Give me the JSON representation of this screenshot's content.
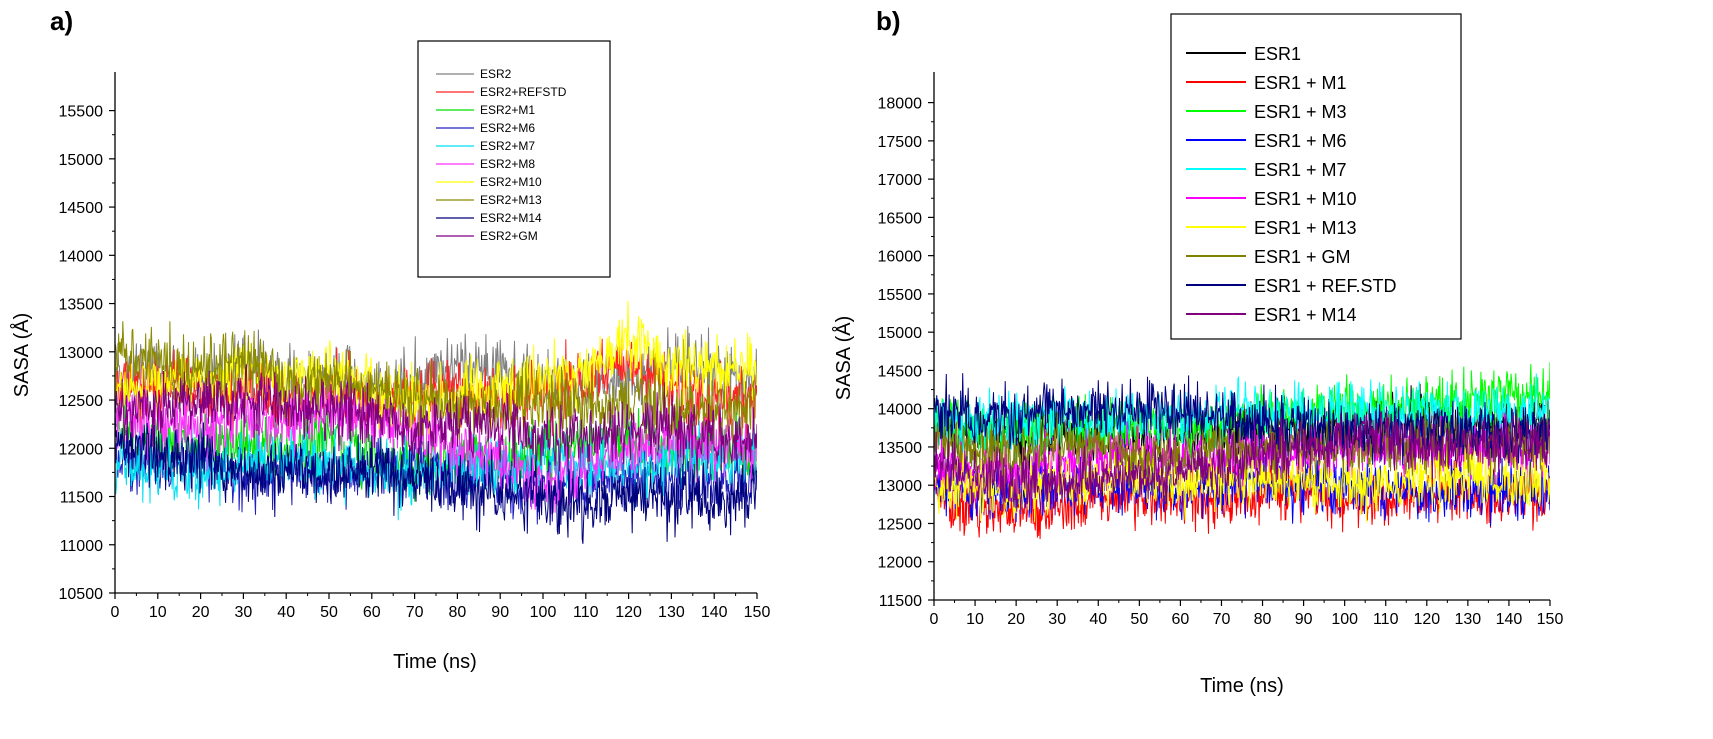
{
  "chart_data": [
    {
      "type": "line",
      "panel_label": "a)",
      "xlabel": "Time (ns)",
      "ylabel": "SASA (Å)",
      "xlim": [
        0,
        150
      ],
      "ylim": [
        10500,
        15900
      ],
      "x_ticks": [
        0,
        10,
        20,
        30,
        40,
        50,
        60,
        70,
        80,
        90,
        100,
        110,
        120,
        130,
        140,
        150
      ],
      "x_tick_labels": [
        "0",
        "10",
        "20",
        "30",
        "40",
        "50",
        "60",
        "70",
        "80",
        "90",
        "100",
        "110",
        "120",
        "130",
        "140",
        "150"
      ],
      "y_ticks": [
        10500,
        11000,
        11500,
        12000,
        12500,
        13000,
        13500,
        14000,
        14500,
        15000,
        15500
      ],
      "y_tick_labels": [
        "10500",
        "11000",
        "11500",
        "12000",
        "12500",
        "13000",
        "13500",
        "14000",
        "14500",
        "15000",
        "15500"
      ],
      "grid": false,
      "legend_position": "top-right",
      "x": [
        0,
        10,
        20,
        30,
        40,
        50,
        60,
        70,
        80,
        90,
        100,
        110,
        120,
        130,
        140,
        150
      ],
      "series": [
        {
          "name": "ESR2",
          "color": "#808080",
          "values": [
            12700,
            12800,
            12700,
            12800,
            12700,
            12800,
            12600,
            12700,
            12900,
            12800,
            12700,
            12600,
            12700,
            12900,
            12800,
            12700
          ]
        },
        {
          "name": "ESR2+REFSTD",
          "color": "#ff2020",
          "values": [
            12600,
            12700,
            12600,
            12600,
            12500,
            12600,
            12500,
            12500,
            12600,
            12500,
            12600,
            12700,
            12900,
            12600,
            12500,
            12500
          ]
        },
        {
          "name": "ESR2+M1",
          "color": "#00e000",
          "values": [
            12200,
            12100,
            12100,
            12000,
            12000,
            12100,
            11900,
            11800,
            11900,
            11900,
            12000,
            12000,
            12100,
            12000,
            12000,
            11900
          ]
        },
        {
          "name": "ESR2+M6",
          "color": "#2020c0",
          "values": [
            11900,
            11800,
            11900,
            11700,
            11800,
            11700,
            11800,
            11800,
            11700,
            11700,
            11600,
            11600,
            11700,
            11700,
            11600,
            11700
          ]
        },
        {
          "name": "ESR2+M7",
          "color": "#00e0f0",
          "values": [
            11900,
            11700,
            11800,
            11800,
            11900,
            11800,
            11800,
            11700,
            11800,
            11800,
            11900,
            11800,
            11800,
            11900,
            11900,
            11900
          ]
        },
        {
          "name": "ESR2+M8",
          "color": "#ff30ff",
          "values": [
            12300,
            12300,
            12200,
            12300,
            12300,
            12400,
            12300,
            12200,
            12000,
            11900,
            11600,
            11800,
            12000,
            12100,
            12000,
            12000
          ]
        },
        {
          "name": "ESR2+M10",
          "color": "#ffff00",
          "values": [
            12600,
            12700,
            12700,
            12800,
            12700,
            12800,
            12600,
            12500,
            12500,
            12600,
            12700,
            12800,
            13100,
            12900,
            12800,
            12800
          ]
        },
        {
          "name": "ESR2+M13",
          "color": "#8b8b00",
          "values": [
            13000,
            12900,
            12800,
            12900,
            12700,
            12700,
            12600,
            12500,
            12500,
            12400,
            12500,
            12400,
            12500,
            12400,
            12400,
            12400
          ]
        },
        {
          "name": "ESR2+M14",
          "color": "#00007a",
          "values": [
            12100,
            11900,
            11900,
            11700,
            11800,
            11700,
            11800,
            11700,
            11600,
            11500,
            11500,
            11400,
            11500,
            11500,
            11400,
            11600
          ]
        },
        {
          "name": "ESR2+GM",
          "color": "#800080",
          "values": [
            12400,
            12400,
            12500,
            12500,
            12400,
            12400,
            12300,
            12200,
            12300,
            12200,
            12100,
            12100,
            12200,
            12200,
            12100,
            12100
          ]
        }
      ]
    },
    {
      "type": "line",
      "panel_label": "b)",
      "xlabel": "Time (ns)",
      "ylabel": "SASA (Å)",
      "xlim": [
        0,
        150
      ],
      "ylim": [
        11500,
        18400
      ],
      "x_ticks": [
        0,
        10,
        20,
        30,
        40,
        50,
        60,
        70,
        80,
        90,
        100,
        110,
        120,
        130,
        140,
        150
      ],
      "x_tick_labels": [
        "0",
        "10",
        "20",
        "30",
        "40",
        "50",
        "60",
        "70",
        "80",
        "90",
        "100",
        "110",
        "120",
        "130",
        "140",
        "150"
      ],
      "y_ticks": [
        11500,
        12000,
        12500,
        13000,
        13500,
        14000,
        14500,
        15000,
        15500,
        16000,
        16500,
        17000,
        17500,
        18000
      ],
      "y_tick_labels": [
        "11500",
        "12000",
        "12500",
        "13000",
        "13500",
        "14000",
        "14500",
        "15000",
        "15500",
        "16000",
        "16500",
        "17000",
        "17500",
        "18000"
      ],
      "grid": false,
      "legend_position": "top-right",
      "x": [
        0,
        10,
        20,
        30,
        40,
        50,
        60,
        70,
        80,
        90,
        100,
        110,
        120,
        130,
        140,
        150
      ],
      "series": [
        {
          "name": "ESR1",
          "color": "#000000",
          "values": [
            13700,
            13700,
            13600,
            13700,
            13700,
            13600,
            13600,
            13700,
            13800,
            13700,
            13800,
            13800,
            13900,
            13800,
            13800,
            13900
          ]
        },
        {
          "name": "ESR1 + M1",
          "color": "#ff0000",
          "values": [
            12900,
            12700,
            12600,
            12700,
            12800,
            12900,
            12800,
            12800,
            12900,
            12900,
            12800,
            12800,
            12900,
            12900,
            12800,
            12900
          ]
        },
        {
          "name": "ESR1 + M3",
          "color": "#00ff00",
          "values": [
            13800,
            13800,
            13700,
            13800,
            13700,
            13800,
            13700,
            13800,
            13900,
            13900,
            14000,
            14000,
            14100,
            14100,
            14200,
            14200
          ]
        },
        {
          "name": "ESR1 + M6",
          "color": "#0000ff",
          "values": [
            13000,
            12900,
            12900,
            13000,
            13000,
            13000,
            12900,
            13000,
            13000,
            13000,
            12900,
            12900,
            12900,
            12900,
            12900,
            12900
          ]
        },
        {
          "name": "ESR1 + M7",
          "color": "#00ffff",
          "values": [
            13900,
            13800,
            13800,
            13900,
            13800,
            13900,
            13900,
            14000,
            13900,
            13900,
            14000,
            14000,
            14000,
            13900,
            14000,
            14000
          ]
        },
        {
          "name": "ESR1 + M10",
          "color": "#ff00ff",
          "values": [
            13300,
            13200,
            13200,
            13300,
            13300,
            13400,
            13300,
            13400,
            13400,
            13400,
            13500,
            13500,
            13500,
            13500,
            13500,
            13500
          ]
        },
        {
          "name": "ESR1 + M13",
          "color": "#ffff00",
          "values": [
            13000,
            13000,
            12900,
            13000,
            13100,
            13100,
            13000,
            13100,
            13100,
            13100,
            13000,
            13000,
            13100,
            13100,
            13000,
            13100
          ]
        },
        {
          "name": "ESR1 + GM",
          "color": "#808000",
          "values": [
            13600,
            13500,
            13400,
            13500,
            13500,
            13400,
            13400,
            13500,
            13500,
            13500,
            13500,
            13500,
            13600,
            13600,
            13600,
            13600
          ]
        },
        {
          "name": "ESR1 + REF.STD",
          "color": "#000080",
          "values": [
            14000,
            13900,
            13900,
            14000,
            14000,
            14000,
            14000,
            13900,
            13800,
            13800,
            13700,
            13700,
            13700,
            13700,
            13700,
            13700
          ]
        },
        {
          "name": "ESR1 + M14",
          "color": "#800080",
          "values": [
            13300,
            13100,
            13000,
            13000,
            13100,
            13100,
            13200,
            13300,
            13400,
            13500,
            13600,
            13600,
            13500,
            13500,
            13500,
            13600
          ]
        }
      ]
    }
  ]
}
